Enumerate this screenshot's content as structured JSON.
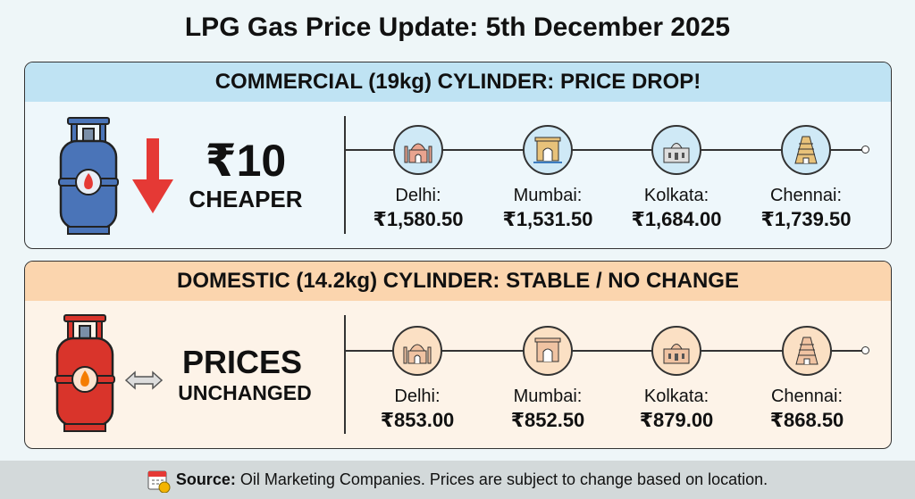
{
  "title": "LPG Gas Price Update: 5th December 2025",
  "commercial": {
    "header": "COMMERCIAL (19kg) CYLINDER: PRICE DROP!",
    "amount": "₹10",
    "label": "CHEAPER",
    "cylinder_color": "#4a74b8",
    "arrow_color": "#e53935",
    "cities": [
      {
        "name": "Delhi:",
        "price": "₹1,580.50",
        "icon": "taj-mahal-icon"
      },
      {
        "name": "Mumbai:",
        "price": "₹1,531.50",
        "icon": "gateway-of-india-icon"
      },
      {
        "name": "Kolkata:",
        "price": "₹1,684.00",
        "icon": "victoria-memorial-icon"
      },
      {
        "name": "Chennai:",
        "price": "₹1,739.50",
        "icon": "temple-gopuram-icon"
      }
    ]
  },
  "domestic": {
    "header": "DOMESTIC (14.2kg) CYLINDER: STABLE / NO CHANGE",
    "amount": "PRICES",
    "label": "UNCHANGED",
    "cylinder_color": "#d9342b",
    "cities": [
      {
        "name": "Delhi:",
        "price": "₹853.00",
        "icon": "taj-mahal-icon"
      },
      {
        "name": "Mumbai:",
        "price": "₹852.50",
        "icon": "gateway-of-india-icon"
      },
      {
        "name": "Kolkata:",
        "price": "₹879.00",
        "icon": "victoria-memorial-icon"
      },
      {
        "name": "Chennai:",
        "price": "₹868.50",
        "icon": "temple-gopuram-icon"
      }
    ]
  },
  "footer": {
    "source_label": "Source:",
    "text": " Oil Marketing Companies. Prices are subject to change based on location."
  }
}
